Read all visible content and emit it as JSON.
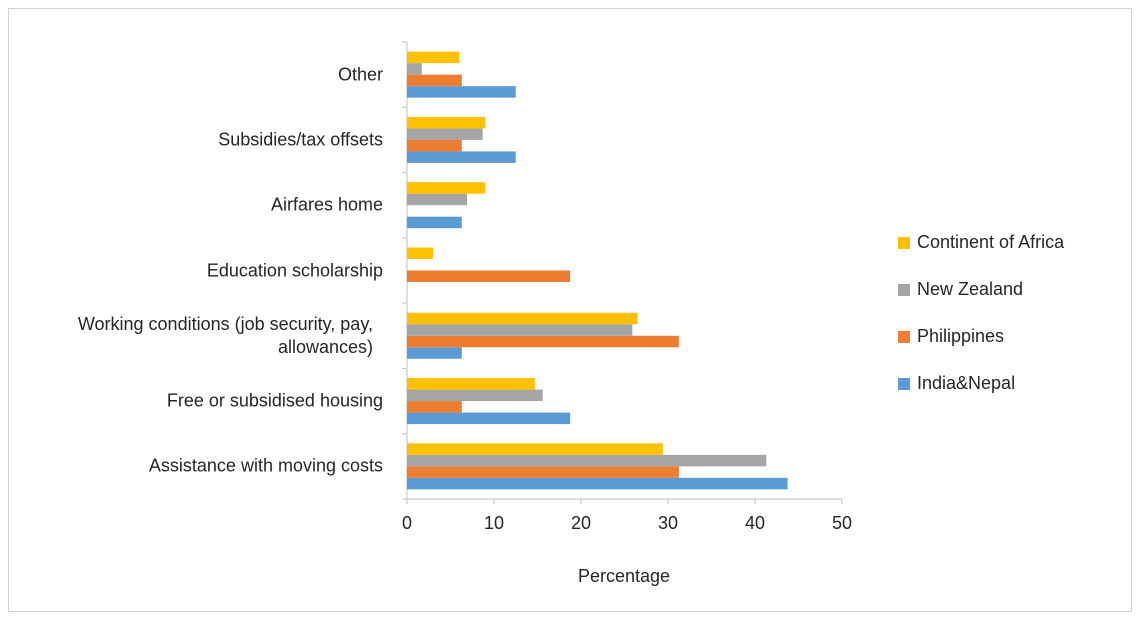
{
  "chart_data": {
    "type": "hbar",
    "x_label": "Percentage",
    "categories": [
      "Assistance with moving costs",
      "Free or subsidised housing",
      "Working conditions (job security, pay, allowances)",
      "Education scholarship",
      "Airfares home",
      "Subsidies/tax offsets",
      "Other"
    ],
    "series": [
      {
        "name": "India&Nepal",
        "color": "#5b9bd5",
        "values": [
          43.75,
          18.75,
          6.3,
          0,
          6.3,
          12.5,
          12.5
        ]
      },
      {
        "name": "Philippines",
        "color": "#ed7d31",
        "values": [
          31.25,
          6.3,
          31.25,
          18.75,
          0,
          6.3,
          6.3
        ]
      },
      {
        "name": "New Zealand",
        "color": "#a5a5a5",
        "values": [
          41.3,
          15.6,
          25.9,
          0,
          6.9,
          8.7,
          1.7
        ]
      },
      {
        "name": "Continent of Africa",
        "color": "#ffc000",
        "values": [
          29.4,
          14.7,
          26.5,
          3.0,
          9.0,
          9.0,
          6.0
        ]
      }
    ],
    "xlim": [
      0,
      50
    ],
    "xticks": [
      0,
      10,
      20,
      30,
      40,
      50
    ],
    "grid": false,
    "legend": "right"
  }
}
